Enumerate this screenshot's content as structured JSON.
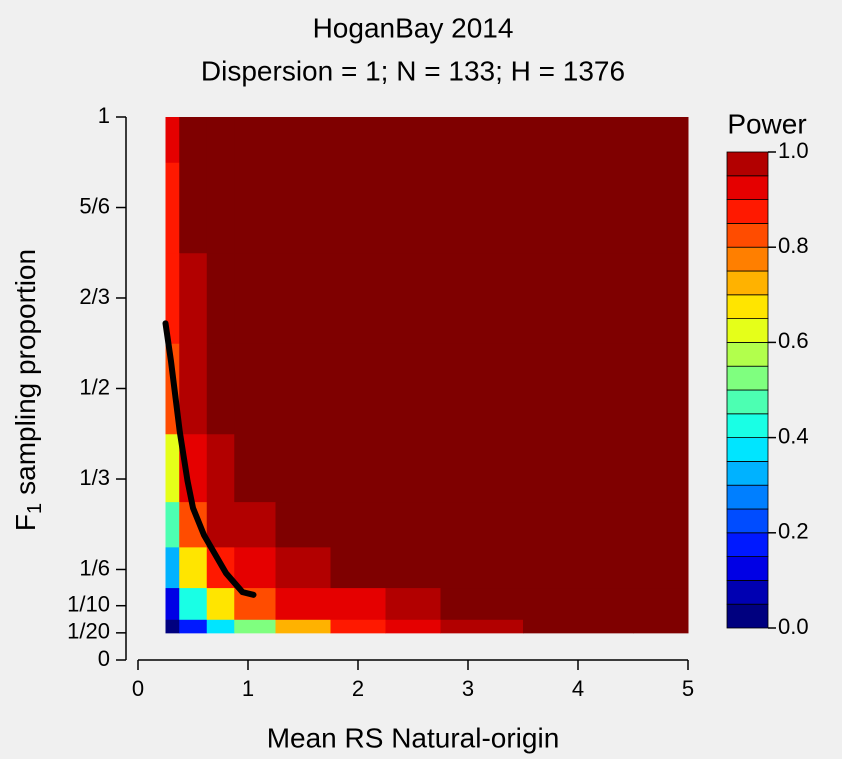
{
  "chart_data": {
    "type": "filled-contour",
    "title": "HoganBay 2014",
    "subtitle": "Dispersion = 1; N = 133; H = 1376",
    "xlabel": "Mean RS Natural-origin",
    "ylabel_main": "F",
    "ylabel_sub": "1",
    "ylabel_rest": "sampling proportion",
    "legend_title": "Power",
    "xlim": [
      0,
      5
    ],
    "xticks": [
      0,
      1,
      2,
      3,
      4,
      5
    ],
    "ylim": [
      0,
      1
    ],
    "yticks": [
      0,
      {
        "value": 0.05,
        "label": "1/20"
      },
      {
        "value": 0.1,
        "label": "1/10"
      },
      {
        "value": 0.1667,
        "label": "1/6"
      },
      {
        "value": 0.3333,
        "label": "1/3"
      },
      {
        "value": 0.5,
        "label": "1/2"
      },
      {
        "value": 0.6667,
        "label": "2/3"
      },
      {
        "value": 0.8333,
        "label": "5/6"
      },
      1
    ],
    "x": [
      0.25,
      0.5,
      0.75,
      1,
      1.5,
      2,
      2.5,
      3,
      4,
      5
    ],
    "y": [
      0.05,
      0.1,
      0.1667,
      0.25,
      0.3333,
      0.5,
      0.6667,
      0.8333,
      1
    ],
    "z": [
      [
        0.02,
        0.15,
        0.35,
        0.5,
        0.7,
        0.85,
        0.9,
        0.95,
        1,
        1
      ],
      [
        0.12,
        0.4,
        0.65,
        0.8,
        0.9,
        0.93,
        0.97,
        1,
        1,
        1
      ],
      [
        0.3,
        0.65,
        0.85,
        0.93,
        0.97,
        1,
        1,
        1,
        1,
        1
      ],
      [
        0.45,
        0.82,
        0.95,
        0.98,
        1,
        1,
        1,
        1,
        1,
        1
      ],
      [
        0.6,
        0.9,
        0.98,
        1,
        1,
        1,
        1,
        1,
        1,
        1
      ],
      [
        0.8,
        0.95,
        1,
        1,
        1,
        1,
        1,
        1,
        1,
        1
      ],
      [
        0.85,
        0.98,
        1,
        1,
        1,
        1,
        1,
        1,
        1,
        1
      ],
      [
        0.88,
        1,
        1,
        1,
        1,
        1,
        1,
        1,
        1,
        1
      ],
      [
        0.9,
        1,
        1,
        1,
        1,
        1,
        1,
        1,
        1,
        1
      ]
    ],
    "levels": [
      0,
      0.05,
      0.1,
      0.15,
      0.2,
      0.25,
      0.3,
      0.35,
      0.4,
      0.45,
      0.5,
      0.55,
      0.6,
      0.65,
      0.7,
      0.75,
      0.8,
      0.85,
      0.9,
      0.95,
      1
    ],
    "colors": [
      "#00007f",
      "#0000b2",
      "#0000e5",
      "#0019ff",
      "#004cff",
      "#007fff",
      "#00b2ff",
      "#00e5ff",
      "#19ffe5",
      "#4cffb2",
      "#7fff7f",
      "#b2ff4c",
      "#e5ff19",
      "#ffe500",
      "#ffb200",
      "#ff7f00",
      "#ff4c00",
      "#ff1900",
      "#e50000",
      "#b20000"
    ],
    "top_color": "#7f0000",
    "legend_ticks": [
      {
        "value": 0,
        "label": "0.0"
      },
      0.2,
      0.4,
      0.6,
      0.8,
      {
        "value": 1,
        "label": "1.0"
      }
    ],
    "line": {
      "x": [
        0.25,
        0.3,
        0.38,
        0.45,
        0.5,
        0.6,
        0.8,
        0.95,
        1.05
      ],
      "y": [
        0.62,
        0.55,
        0.42,
        0.33,
        0.28,
        0.23,
        0.16,
        0.125,
        0.12
      ],
      "color": "#000000"
    }
  }
}
